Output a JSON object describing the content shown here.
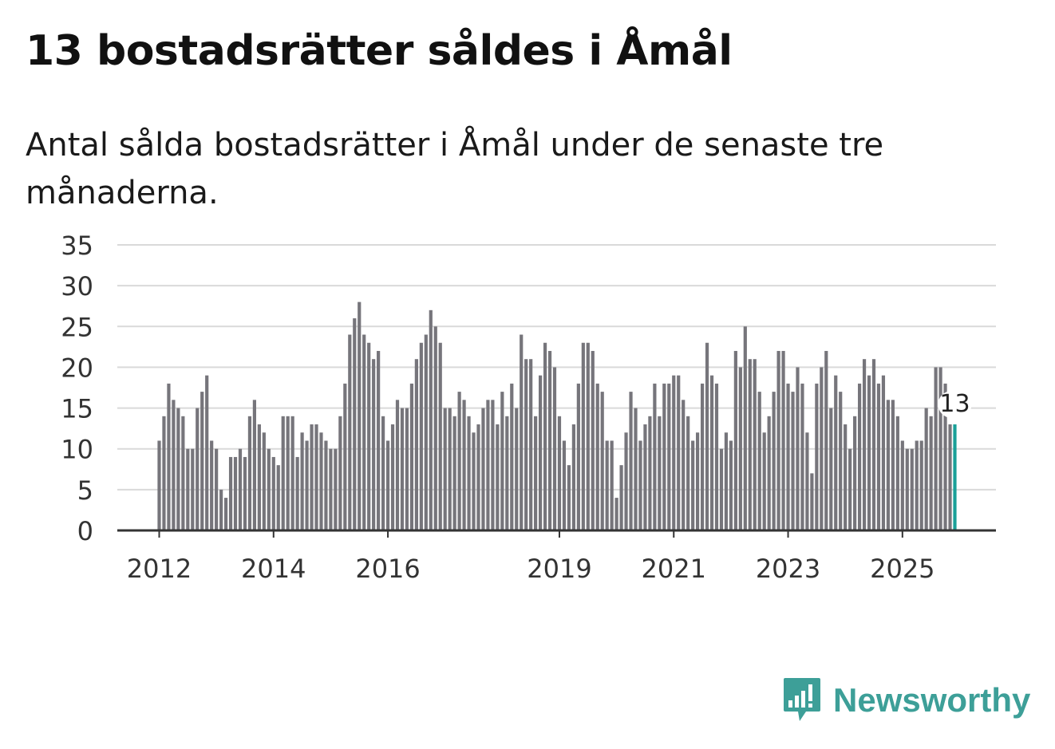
{
  "header": {
    "title": "13 bostadsrätter såldes i Åmål",
    "subtitle": "Antal sålda bostadsrätter i Åmål under de senaste tre månaderna."
  },
  "brand": {
    "name": "Newsworthy",
    "icon": "newsworthy-logo-icon"
  },
  "colors": {
    "bar": "#76757b",
    "highlight": "#1aa098",
    "grid": "#d9d9d9",
    "axis": "#333333",
    "brand": "#3d9f98"
  },
  "chart_data": {
    "type": "bar",
    "title": "13 bostadsrätter såldes i Åmål",
    "xlabel": "",
    "ylabel": "",
    "ylim": [
      0,
      35
    ],
    "yticks": [
      0,
      5,
      10,
      15,
      20,
      25,
      30,
      35
    ],
    "xtick_labels": [
      {
        "label": "2012",
        "index": 0
      },
      {
        "label": "2014",
        "index": 24
      },
      {
        "label": "2016",
        "index": 48
      },
      {
        "label": "2019",
        "index": 84
      },
      {
        "label": "2021",
        "index": 108
      },
      {
        "label": "2023",
        "index": 132
      },
      {
        "label": "2025",
        "index": 156
      }
    ],
    "values": [
      11,
      14,
      18,
      16,
      15,
      14,
      10,
      10,
      15,
      17,
      19,
      11,
      10,
      5,
      4,
      9,
      9,
      10,
      9,
      14,
      16,
      13,
      12,
      10,
      9,
      8,
      14,
      14,
      14,
      9,
      12,
      11,
      13,
      13,
      12,
      11,
      10,
      10,
      14,
      18,
      24,
      26,
      28,
      24,
      23,
      21,
      22,
      14,
      11,
      13,
      16,
      15,
      15,
      18,
      21,
      23,
      24,
      27,
      25,
      23,
      15,
      15,
      14,
      17,
      16,
      14,
      12,
      13,
      15,
      16,
      16,
      13,
      17,
      14,
      18,
      15,
      24,
      21,
      21,
      14,
      19,
      23,
      22,
      20,
      14,
      11,
      8,
      13,
      18,
      23,
      23,
      22,
      18,
      17,
      11,
      11,
      4,
      8,
      12,
      17,
      15,
      11,
      13,
      14,
      18,
      14,
      18,
      18,
      19,
      19,
      16,
      14,
      11,
      12,
      18,
      23,
      19,
      18,
      10,
      12,
      11,
      22,
      20,
      25,
      21,
      21,
      17,
      12,
      14,
      17,
      22,
      22,
      18,
      17,
      20,
      18,
      12,
      7,
      18,
      20,
      22,
      15,
      19,
      17,
      13,
      10,
      14,
      18,
      21,
      19,
      21,
      18,
      19,
      16,
      16,
      14,
      11,
      10,
      10,
      11,
      11,
      15,
      14,
      20,
      20,
      18,
      13,
      13
    ],
    "highlight": {
      "index": 167,
      "label": "13"
    }
  }
}
